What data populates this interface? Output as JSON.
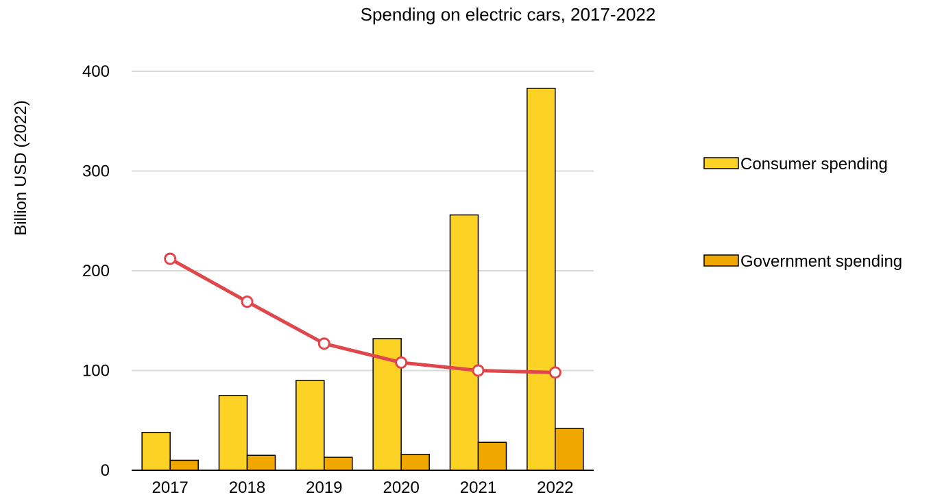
{
  "chart_data": {
    "type": "bar",
    "title": "Spending on electric cars, 2017-2022",
    "xlabel": "",
    "ylabel": "Billion USD (2022)",
    "categories": [
      "2017",
      "2018",
      "2019",
      "2020",
      "2021",
      "2022"
    ],
    "ylim": [
      0,
      400
    ],
    "yticks": [
      "0",
      "100",
      "200",
      "300",
      "400"
    ],
    "grid": true,
    "legend_position": "right",
    "series": [
      {
        "name": "Consumer spending",
        "type": "bar",
        "color": "#FCD224",
        "values": [
          38,
          75,
          90,
          132,
          256,
          383
        ]
      },
      {
        "name": "Government spending",
        "type": "bar",
        "color": "#F0A800",
        "values": [
          10,
          15,
          13,
          16,
          28,
          42
        ]
      },
      {
        "type": "line",
        "color": "#E0474C",
        "values": [
          212,
          169,
          127,
          108,
          100,
          98
        ]
      }
    ]
  }
}
